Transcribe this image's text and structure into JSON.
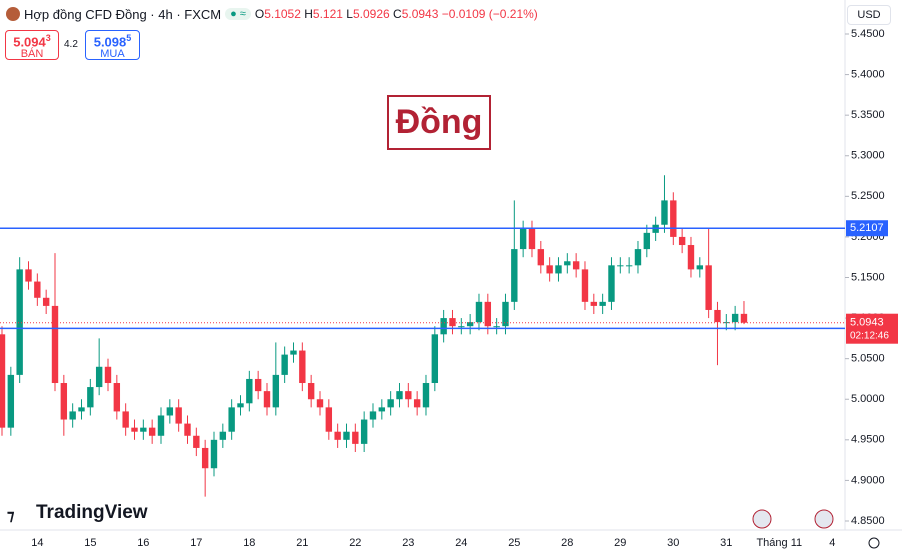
{
  "header": {
    "symbol": "Hợp đồng CFD Đồng · 4h · FXCM",
    "o_label": "O",
    "open": 5.1052,
    "h_label": "H",
    "high": 5.121,
    "l_label": "L",
    "low": 5.0926,
    "c_label": "C",
    "close": 5.0943,
    "change": "−0.0109 (−0.21%)",
    "bid_main": "5.094",
    "bid_pip": "3",
    "bid_label": "BÁN",
    "spread": 4.2,
    "ask_main": "5.098",
    "ask_pip": "5",
    "ask_label": "MUA",
    "currency": "USD",
    "watermark": "Đồng",
    "brand": "TradingView"
  },
  "chart_data": {
    "type": "candlestick",
    "up_color": "#089981",
    "down_color": "#f23645",
    "grid": false,
    "categories": [
      null,
      null,
      null,
      null,
      "14",
      null,
      null,
      null,
      null,
      null,
      "15",
      null,
      null,
      null,
      null,
      null,
      "16",
      null,
      null,
      null,
      null,
      null,
      "17",
      null,
      null,
      null,
      null,
      null,
      "18",
      null,
      null,
      null,
      null,
      null,
      "21",
      null,
      null,
      null,
      null,
      null,
      "22",
      null,
      null,
      null,
      null,
      null,
      "23",
      null,
      null,
      null,
      null,
      null,
      "24",
      null,
      null,
      null,
      null,
      null,
      "25",
      null,
      null,
      null,
      null,
      null,
      "28",
      null,
      null,
      null,
      null,
      null,
      "29",
      null,
      null,
      null,
      null,
      null,
      "30",
      null,
      null,
      null,
      null,
      null,
      "31",
      null,
      null,
      null,
      null,
      null,
      "Tháng 11",
      null,
      null,
      null,
      null,
      null,
      "4",
      null
    ],
    "open": [
      5.08,
      4.965,
      5.03,
      5.16,
      5.145,
      5.125,
      5.115,
      5.02,
      4.975,
      4.985,
      4.99,
      5.015,
      5.04,
      5.02,
      4.985,
      4.965,
      4.96,
      4.965,
      4.955,
      4.98,
      4.99,
      4.97,
      4.955,
      4.94,
      4.915,
      4.95,
      4.96,
      4.99,
      4.995,
      5.025,
      5.01,
      4.99,
      5.03,
      5.055,
      5.06,
      5.02,
      5.0,
      4.99,
      4.96,
      4.95,
      4.96,
      4.945,
      4.975,
      4.985,
      4.99,
      5.0,
      5.01,
      5.0,
      4.99,
      5.02,
      5.08,
      5.1,
      5.09,
      5.09,
      5.095,
      5.12,
      5.09,
      5.09,
      5.12,
      5.185,
      5.21,
      5.185,
      5.165,
      5.155,
      5.165,
      5.17,
      5.16,
      5.12,
      5.115,
      5.12,
      5.165,
      5.165,
      5.165,
      5.185,
      5.205,
      5.215,
      5.245,
      5.2,
      5.19,
      5.16,
      5.165,
      5.11,
      5.095,
      5.095,
      5.1052,
      null,
      null,
      null,
      null,
      null,
      null,
      null,
      null,
      null,
      null,
      null
    ],
    "high": [
      5.09,
      5.04,
      5.175,
      5.17,
      5.155,
      5.135,
      5.18,
      5.03,
      4.995,
      5.0,
      5.025,
      5.075,
      5.05,
      5.03,
      4.995,
      4.975,
      4.975,
      4.975,
      4.99,
      5.0,
      5.0,
      4.98,
      4.965,
      4.95,
      4.96,
      4.97,
      5.0,
      5.005,
      5.035,
      5.035,
      5.02,
      5.07,
      5.065,
      5.07,
      5.07,
      5.03,
      5.01,
      5.0,
      4.97,
      4.97,
      4.97,
      4.985,
      4.995,
      5.0,
      5.01,
      5.02,
      5.02,
      5.01,
      5.03,
      5.09,
      5.11,
      5.11,
      5.1,
      5.105,
      5.13,
      5.13,
      5.1,
      5.13,
      5.245,
      5.22,
      5.22,
      5.195,
      5.175,
      5.175,
      5.18,
      5.18,
      5.17,
      5.13,
      5.13,
      5.175,
      5.175,
      5.175,
      5.195,
      5.215,
      5.225,
      5.276,
      5.255,
      5.21,
      5.2,
      5.175,
      5.21,
      5.12,
      5.105,
      5.115,
      5.121,
      null,
      null,
      null,
      null,
      null,
      null,
      null,
      null,
      null,
      null,
      null
    ],
    "low": [
      4.955,
      4.955,
      5.02,
      5.135,
      5.115,
      5.105,
      5.01,
      4.955,
      4.965,
      4.975,
      4.98,
      5.005,
      5.01,
      4.975,
      4.955,
      4.95,
      4.95,
      4.945,
      4.945,
      4.97,
      4.96,
      4.945,
      4.93,
      4.88,
      4.905,
      4.94,
      4.95,
      4.98,
      4.985,
      5.0,
      4.98,
      4.98,
      5.02,
      5.045,
      5.01,
      4.99,
      4.98,
      4.95,
      4.94,
      4.94,
      4.935,
      4.935,
      4.965,
      4.975,
      4.98,
      4.99,
      4.99,
      4.98,
      4.98,
      5.01,
      5.07,
      5.08,
      5.08,
      5.08,
      5.085,
      5.08,
      5.08,
      5.08,
      5.11,
      5.175,
      5.175,
      5.155,
      5.145,
      5.145,
      5.155,
      5.15,
      5.11,
      5.105,
      5.105,
      5.11,
      5.155,
      5.155,
      5.155,
      5.175,
      5.195,
      5.205,
      5.19,
      5.18,
      5.15,
      5.15,
      5.1,
      5.042,
      5.085,
      5.085,
      5.0926,
      null,
      null,
      null,
      null,
      null,
      null,
      null,
      null,
      null,
      null,
      null
    ],
    "close": [
      4.965,
      5.03,
      5.16,
      5.145,
      5.125,
      5.115,
      5.02,
      4.975,
      4.985,
      4.99,
      5.015,
      5.04,
      5.02,
      4.985,
      4.965,
      4.96,
      4.965,
      4.955,
      4.98,
      4.99,
      4.97,
      4.955,
      4.94,
      4.915,
      4.95,
      4.96,
      4.99,
      4.995,
      5.025,
      5.01,
      4.99,
      5.03,
      5.055,
      5.06,
      5.02,
      5.0,
      4.99,
      4.96,
      4.95,
      4.96,
      4.945,
      4.975,
      4.985,
      4.99,
      5.0,
      5.01,
      5.0,
      4.99,
      5.02,
      5.08,
      5.1,
      5.09,
      5.09,
      5.095,
      5.12,
      5.09,
      5.09,
      5.12,
      5.185,
      5.21,
      5.185,
      5.165,
      5.155,
      5.165,
      5.17,
      5.16,
      5.12,
      5.115,
      5.12,
      5.165,
      5.165,
      5.165,
      5.185,
      5.205,
      5.215,
      5.245,
      5.2,
      5.19,
      5.16,
      5.165,
      5.11,
      5.095,
      5.095,
      5.1052,
      5.0943,
      null,
      null,
      null,
      null,
      null,
      null,
      null,
      null,
      null,
      null,
      null
    ],
    "ylim": [
      4.8389,
      5.4919
    ],
    "yticks": [
      {
        "value": 4.85,
        "label": "4.8500"
      },
      {
        "value": 4.9,
        "label": "4.9000"
      },
      {
        "value": 4.95,
        "label": "4.9500"
      },
      {
        "value": 5.0,
        "label": "5.0000"
      },
      {
        "value": 5.05,
        "label": "5.0500"
      },
      {
        "value": 5.1,
        "label": "5.1000"
      },
      {
        "value": 5.15,
        "label": "5.1500"
      },
      {
        "value": 5.2,
        "label": "5.2000"
      },
      {
        "value": 5.25,
        "label": "5.2500"
      },
      {
        "value": 5.3,
        "label": "5.3000"
      },
      {
        "value": 5.35,
        "label": "5.3500"
      },
      {
        "value": 5.4,
        "label": "5.4000"
      },
      {
        "value": 5.45,
        "label": "5.4500"
      }
    ],
    "hlines": [
      {
        "value": 5.2107,
        "color": "#2962ff"
      },
      {
        "value": 5.0873,
        "color": "#2962ff"
      }
    ],
    "last_price": {
      "value": 5.0943,
      "countdown": "02:12:46",
      "color": "#f23645"
    }
  }
}
